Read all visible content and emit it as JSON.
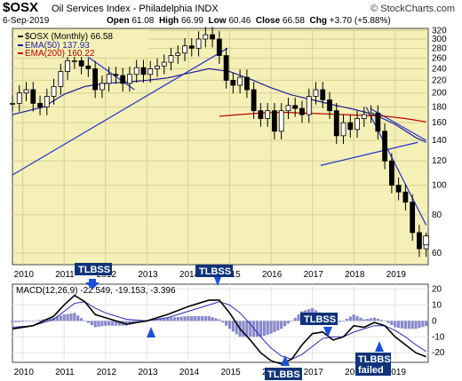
{
  "header": {
    "symbol": "$OSX",
    "name": "Oil Services Index - Philadelphia INDX",
    "date": "6-Sep-2019",
    "open_label": "Open",
    "open": "61.08",
    "high_label": "High",
    "high": "66.99",
    "low_label": "Low",
    "low": "60.46",
    "close_label": "Close",
    "close": "66.58",
    "chg_label": "Chg",
    "chg": "+3.70 (+5.88%)",
    "logo": "© StockCharts.com"
  },
  "colors": {
    "price_bg": "#f5f0b8",
    "candle": "#000000",
    "ema50": "#1f1f9e",
    "ema200": "#c00000",
    "trendline": "#2233cc",
    "macd_line": "#000000",
    "signal_line": "#2a2ab0",
    "histogram": "#8888cc",
    "annot_bg": "#10337a",
    "arrow": "#1a4fd8"
  },
  "chart_data": [
    {
      "type": "line",
      "title": "$OSX",
      "y_scale": "log",
      "ylim": [
        55,
        325
      ],
      "y_ticks": [
        60,
        80,
        100,
        120,
        140,
        160,
        180,
        200,
        220,
        240,
        260,
        280,
        300,
        320
      ],
      "x_ticks": [
        "2010",
        "2011",
        "2012",
        "2013",
        "2014",
        "2015",
        "2016",
        "2017",
        "2018",
        "2019"
      ],
      "xlim": [
        2009.75,
        2019.8
      ],
      "legend": [
        {
          "label": "$OSX (Monthly) 66.58"
        },
        {
          "label": "EMA(50) 137.93"
        },
        {
          "label": "EMA(200) 160.22"
        }
      ],
      "series": [
        {
          "name": "$OSX (Monthly)",
          "x": [
            2009.75,
            2009.917,
            2010.083,
            2010.25,
            2010.417,
            2010.583,
            2010.75,
            2010.917,
            2011.083,
            2011.25,
            2011.417,
            2011.583,
            2011.75,
            2011.917,
            2012.083,
            2012.25,
            2012.417,
            2012.583,
            2012.75,
            2012.917,
            2013.083,
            2013.25,
            2013.417,
            2013.583,
            2013.75,
            2013.917,
            2014.083,
            2014.25,
            2014.417,
            2014.583,
            2014.75,
            2014.917,
            2015.083,
            2015.25,
            2015.417,
            2015.583,
            2015.75,
            2015.917,
            2016.083,
            2016.25,
            2016.417,
            2016.583,
            2016.75,
            2016.917,
            2017.083,
            2017.25,
            2017.417,
            2017.583,
            2017.75,
            2017.917,
            2018.083,
            2018.25,
            2018.417,
            2018.583,
            2018.75,
            2018.917,
            2019.083,
            2019.25,
            2019.417,
            2019.583,
            2019.75
          ],
          "values": [
            185,
            200,
            205,
            185,
            180,
            195,
            210,
            235,
            255,
            255,
            245,
            240,
            205,
            215,
            230,
            228,
            215,
            230,
            242,
            230,
            240,
            245,
            252,
            265,
            270,
            285,
            280,
            300,
            310,
            300,
            265,
            220,
            212,
            225,
            205,
            175,
            165,
            175,
            150,
            175,
            182,
            178,
            170,
            195,
            205,
            190,
            175,
            145,
            160,
            152,
            165,
            170,
            172,
            150,
            120,
            100,
            95,
            88,
            70,
            62,
            66
          ]
        },
        {
          "name": "EMA(50)",
          "x": [
            2009.75,
            2010.5,
            2011.0,
            2011.5,
            2012.0,
            2012.5,
            2013.0,
            2013.5,
            2014.0,
            2014.5,
            2015.0,
            2015.5,
            2016.0,
            2016.5,
            2017.0,
            2017.5,
            2018.0,
            2018.5,
            2019.0,
            2019.5,
            2019.75
          ],
          "values": [
            170,
            180,
            198,
            210,
            215,
            217,
            220,
            224,
            232,
            240,
            235,
            222,
            208,
            197,
            190,
            183,
            177,
            170,
            158,
            143,
            138
          ]
        },
        {
          "name": "EMA(200)",
          "x": [
            2014.75,
            2015.25,
            2015.75,
            2016.25,
            2016.75,
            2017.25,
            2017.75,
            2018.25,
            2018.75,
            2019.25,
            2019.75
          ],
          "values": [
            168,
            170,
            172,
            173,
            172,
            171,
            170,
            169,
            168,
            165,
            161
          ]
        }
      ]
    },
    {
      "type": "line",
      "title": "MACD",
      "ylim": [
        -26,
        23
      ],
      "y_ticks": [
        20,
        10,
        0,
        -10,
        -20
      ],
      "x_ticks": [
        "2010",
        "2011",
        "2012",
        "2013",
        "2014",
        "2015",
        "2016",
        "2017",
        "2018",
        "2019"
      ],
      "xlim": [
        2009.75,
        2019.8
      ],
      "legend": [
        {
          "label": "MACD(12,26,9) -22.549, -19.153, -3.396"
        }
      ],
      "series": [
        {
          "name": "MACD(12,26,9)",
          "x": [
            2009.75,
            2010.25,
            2010.75,
            2011.0,
            2011.25,
            2011.5,
            2011.75,
            2012.0,
            2012.5,
            2013.0,
            2013.5,
            2014.0,
            2014.5,
            2014.75,
            2015.0,
            2015.25,
            2015.5,
            2015.75,
            2016.0,
            2016.25,
            2016.5,
            2016.75,
            2017.0,
            2017.25,
            2017.5,
            2017.75,
            2018.0,
            2018.25,
            2018.5,
            2018.75,
            2019.0,
            2019.25,
            2019.5,
            2019.75
          ],
          "values": [
            -5,
            -3,
            3,
            10,
            16,
            12,
            4,
            2,
            -2,
            0,
            4,
            9,
            13,
            13,
            5,
            -5,
            -12,
            -20,
            -25,
            -27,
            -24,
            -15,
            -8,
            -7,
            -12,
            -10,
            -3,
            -4,
            -1,
            -3,
            -10,
            -15,
            -20,
            -22.5
          ]
        },
        {
          "name": "Signal",
          "x": [
            2009.75,
            2010.25,
            2010.75,
            2011.0,
            2011.25,
            2011.5,
            2011.75,
            2012.0,
            2012.5,
            2013.0,
            2013.5,
            2014.0,
            2014.5,
            2014.75,
            2015.0,
            2015.25,
            2015.5,
            2015.75,
            2016.0,
            2016.25,
            2016.5,
            2016.75,
            2017.0,
            2017.25,
            2017.5,
            2017.75,
            2018.0,
            2018.25,
            2018.5,
            2018.75,
            2019.0,
            2019.25,
            2019.5,
            2019.75
          ],
          "values": [
            -4,
            -3,
            1,
            6,
            11,
            12,
            8,
            5,
            1,
            0,
            2,
            6,
            10,
            12,
            10,
            5,
            -2,
            -10,
            -17,
            -22,
            -24,
            -21,
            -16,
            -11,
            -10,
            -10,
            -7,
            -5,
            -3,
            -3,
            -6,
            -10,
            -15,
            -19.2
          ]
        }
      ]
    }
  ],
  "annotations": {
    "tlbss_1": "TLBSS",
    "tlbss_2": "TLBSS",
    "tlbss_3": "TLBSS",
    "tlbbs_1": "TLBBS",
    "tlbbs_2": "TLBBS",
    "failed": "failed"
  }
}
